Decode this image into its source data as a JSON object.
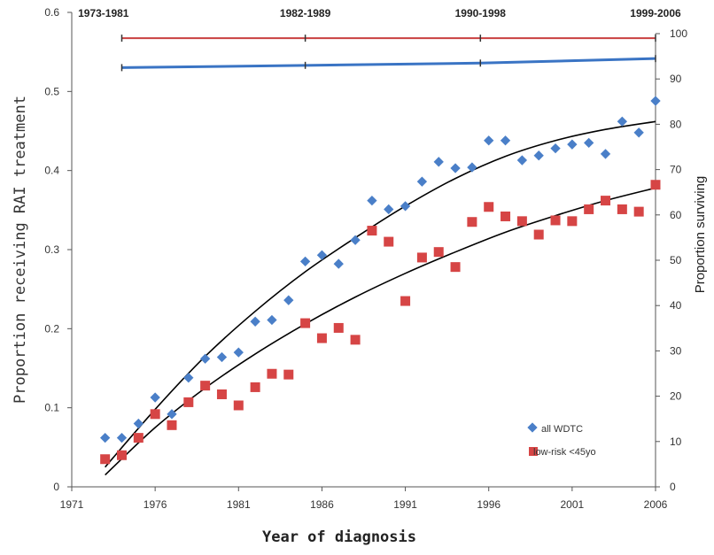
{
  "chart_data": {
    "type": "scatter",
    "xlabel": "Year of diagnosis",
    "ylabel": "Proportion receiving RAI treatment",
    "y2label": "Proportion surviving",
    "xlim": [
      1971,
      2006
    ],
    "ylim": [
      0,
      0.6
    ],
    "y2lim": [
      0,
      100
    ],
    "xticks": [
      "1971",
      "1976",
      "1981",
      "1986",
      "1991",
      "1996",
      "2001",
      "2006"
    ],
    "yticks": [
      "0",
      "0.1",
      "0.2",
      "0.3",
      "0.4",
      "0.5",
      "0.6"
    ],
    "y2ticks": [
      "0",
      "10",
      "20",
      "30",
      "40",
      "50",
      "60",
      "70",
      "80",
      "90",
      "100"
    ],
    "grid": false,
    "legend_position": "bottom-right",
    "series": [
      {
        "name": "all WDTC",
        "color": "#4a7fc8",
        "marker": "diamond",
        "x": [
          1973,
          1974,
          1975,
          1976,
          1977,
          1978,
          1979,
          1980,
          1981,
          1982,
          1983,
          1984,
          1985,
          1986,
          1987,
          1988,
          1989,
          1990,
          1991,
          1992,
          1993,
          1994,
          1995,
          1996,
          1997,
          1998,
          1999,
          2000,
          2001,
          2002,
          2003,
          2004,
          2005,
          2006
        ],
        "y": [
          0.062,
          0.062,
          0.08,
          0.113,
          0.092,
          0.138,
          0.162,
          0.164,
          0.17,
          0.209,
          0.211,
          0.236,
          0.285,
          0.293,
          0.282,
          0.312,
          0.362,
          0.351,
          0.355,
          0.386,
          0.411,
          0.403,
          0.404,
          0.438,
          0.438,
          0.413,
          0.419,
          0.428,
          0.433,
          0.435,
          0.421,
          0.462,
          0.448,
          0.488
        ]
      },
      {
        "name": "low-risk <45yo",
        "color": "#d64545",
        "marker": "square",
        "x": [
          1973,
          1974,
          1975,
          1976,
          1977,
          1978,
          1979,
          1980,
          1981,
          1982,
          1983,
          1984,
          1985,
          1986,
          1987,
          1988,
          1989,
          1990,
          1991,
          1992,
          1993,
          1994,
          1995,
          1996,
          1997,
          1998,
          1999,
          2000,
          2001,
          2002,
          2003,
          2004,
          2005,
          2006
        ],
        "y": [
          0.035,
          0.04,
          0.062,
          0.092,
          0.078,
          0.107,
          0.128,
          0.117,
          0.103,
          0.126,
          0.143,
          0.142,
          0.207,
          0.188,
          0.201,
          0.186,
          0.324,
          0.31,
          0.235,
          0.29,
          0.297,
          0.278,
          0.335,
          0.354,
          0.342,
          0.336,
          0.319,
          0.337,
          0.336,
          0.351,
          0.362,
          0.351,
          0.348,
          0.382
        ]
      }
    ],
    "trend_lines": [
      {
        "series": "all WDTC",
        "color": "#000000",
        "x": [
          1973,
          1976,
          1979,
          1982,
          1985,
          1988,
          1991,
          1994,
          1997,
          2000,
          2003,
          2006
        ],
        "y": [
          0.025,
          0.098,
          0.165,
          0.222,
          0.272,
          0.315,
          0.355,
          0.39,
          0.418,
          0.438,
          0.452,
          0.462
        ]
      },
      {
        "series": "low-risk <45yo",
        "color": "#000000",
        "x": [
          1973,
          1976,
          1979,
          1982,
          1985,
          1988,
          1991,
          1994,
          1997,
          2000,
          2003,
          2006
        ],
        "y": [
          0.015,
          0.075,
          0.125,
          0.168,
          0.206,
          0.24,
          0.27,
          0.297,
          0.322,
          0.343,
          0.362,
          0.378
        ]
      }
    ],
    "survival_periods": {
      "labels": [
        "1973-1981",
        "1982-1989",
        "1990-1998",
        "1999-2006"
      ],
      "lines": [
        {
          "color": "#c94040",
          "x": [
            1974,
            1985,
            1995.5,
            2006
          ],
          "y": [
            99.0,
            99.0,
            99.0,
            99.0
          ]
        },
        {
          "color": "#3a74c4",
          "x": [
            1974,
            1985,
            1995.5,
            2006
          ],
          "y": [
            92.5,
            93.0,
            93.5,
            94.5
          ]
        }
      ]
    }
  }
}
